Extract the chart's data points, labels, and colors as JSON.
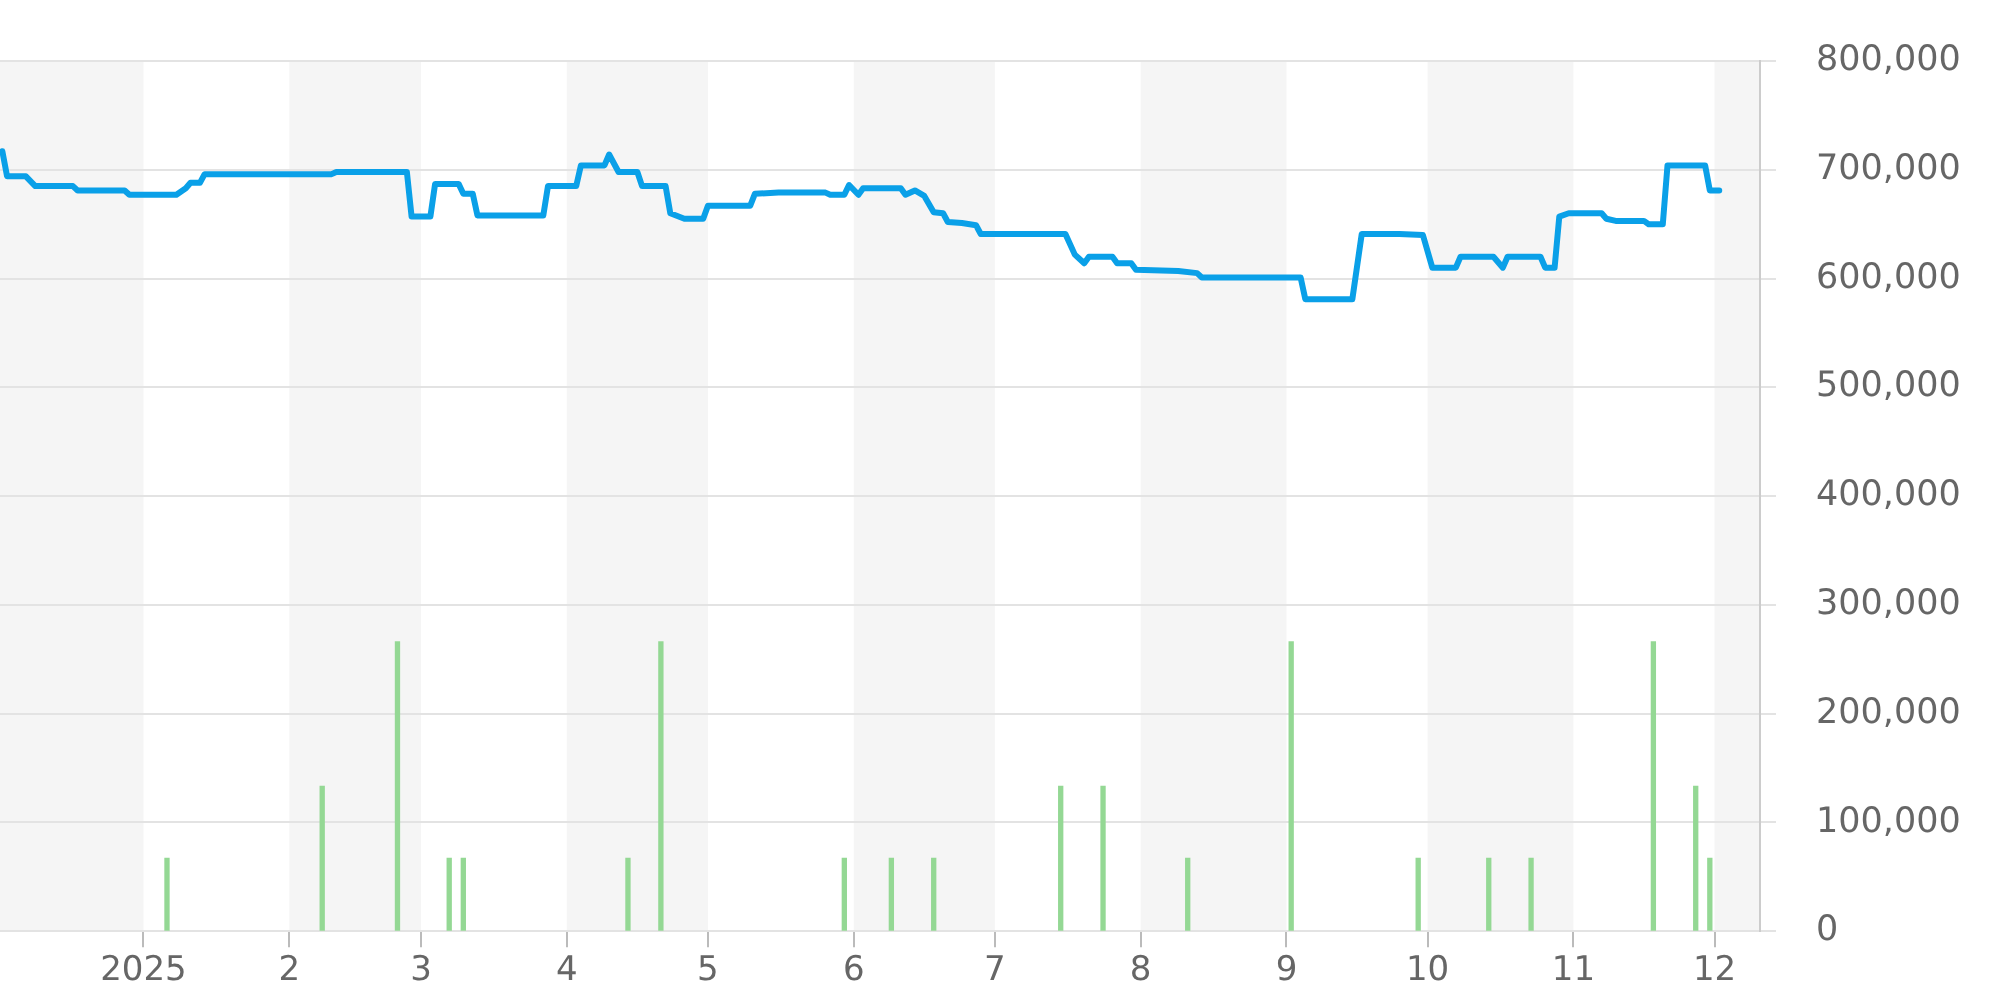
{
  "chart_data": {
    "type": "line",
    "series": [
      {
        "color": "#0aa0e8",
        "x": [
          "2024-12-02",
          "2024-12-03",
          "2024-12-07",
          "2024-12-09",
          "2024-12-17",
          "2024-12-18",
          "2024-12-28",
          "2024-12-29",
          "2025-01-08",
          "2025-01-10",
          "2025-01-11",
          "2025-01-13",
          "2025-01-14",
          "2025-02-10",
          "2025-02-11",
          "2025-02-26",
          "2025-02-27",
          "2025-03-03",
          "2025-03-04",
          "2025-03-09",
          "2025-03-10",
          "2025-03-12",
          "2025-03-13",
          "2025-03-27",
          "2025-03-28",
          "2025-04-03",
          "2025-04-04",
          "2025-04-09",
          "2025-04-10",
          "2025-04-12",
          "2025-04-16",
          "2025-04-17",
          "2025-04-22",
          "2025-04-23",
          "2025-04-26",
          "2025-04-30",
          "2025-05-01",
          "2025-05-10",
          "2025-05-11",
          "2025-05-16",
          "2025-05-26",
          "2025-05-27",
          "2025-05-30",
          "2025-05-31",
          "2025-06-02",
          "2025-06-03",
          "2025-06-11",
          "2025-06-12",
          "2025-06-14",
          "2025-06-16",
          "2025-06-18",
          "2025-06-20",
          "2025-06-21",
          "2025-06-24",
          "2025-06-27",
          "2025-06-28",
          "2025-07-16",
          "2025-07-18",
          "2025-07-20",
          "2025-07-21",
          "2025-07-26",
          "2025-07-27",
          "2025-07-30",
          "2025-07-31",
          "2025-08-09",
          "2025-08-13",
          "2025-08-14",
          "2025-09-04",
          "2025-09-05",
          "2025-09-15",
          "2025-09-17",
          "2025-09-25",
          "2025-09-30",
          "2025-10-02",
          "2025-10-07",
          "2025-10-08",
          "2025-10-15",
          "2025-10-17",
          "2025-10-18",
          "2025-10-25",
          "2025-10-26",
          "2025-10-28",
          "2025-10-29",
          "2025-10-31",
          "2025-11-07",
          "2025-11-08",
          "2025-11-10",
          "2025-11-16",
          "2025-11-17",
          "2025-11-20",
          "2025-11-21",
          "2025-11-29",
          "2025-11-30",
          "2025-12-02"
        ],
        "values": [
          717000,
          694000,
          694000,
          685000,
          685000,
          681000,
          681000,
          677000,
          677000,
          683000,
          688000,
          688000,
          696000,
          696000,
          698000,
          698000,
          657000,
          657000,
          687000,
          687000,
          678000,
          678000,
          658000,
          658000,
          685000,
          685000,
          704000,
          704000,
          714000,
          698000,
          698000,
          685000,
          685000,
          660000,
          655000,
          655000,
          667000,
          667000,
          678000,
          679000,
          679000,
          677000,
          677000,
          686000,
          677000,
          683000,
          683000,
          677000,
          681000,
          676000,
          661000,
          660000,
          652000,
          651000,
          649000,
          641000,
          641000,
          622000,
          614000,
          620000,
          620000,
          614000,
          614000,
          608000,
          607000,
          605000,
          601000,
          601000,
          581000,
          581000,
          641000,
          641000,
          640000,
          610000,
          610000,
          620000,
          620000,
          610000,
          620000,
          620000,
          610000,
          610000,
          657000,
          660000,
          660000,
          655000,
          653000,
          653000,
          650000,
          650000,
          704000,
          704000,
          681000,
          681000
        ]
      },
      {
        "type": "bar",
        "color": "#94d894",
        "x": [
          "2025-01-06",
          "2025-02-08",
          "2025-02-24",
          "2025-03-07",
          "2025-03-10",
          "2025-04-14",
          "2025-04-21",
          "2025-05-30",
          "2025-06-09",
          "2025-06-18",
          "2025-07-15",
          "2025-07-24",
          "2025-08-11",
          "2025-09-02",
          "2025-09-29",
          "2025-10-14",
          "2025-10-23",
          "2025-11-18",
          "2025-11-27",
          "2025-11-30"
        ],
        "values": [
          67000,
          133000,
          266000,
          67000,
          67000,
          67000,
          266000,
          67000,
          67000,
          67000,
          133000,
          133000,
          67000,
          266000,
          67000,
          67000,
          67000,
          266000,
          133000,
          67000
        ]
      }
    ],
    "xlim": [
      "2024-12-01T12:00",
      "2025-12-10T16:00"
    ],
    "xticks": [
      {
        "value": "2025-01-01",
        "label": "2025"
      },
      {
        "value": "2025-02-01",
        "label": "2"
      },
      {
        "value": "2025-03-01",
        "label": "3"
      },
      {
        "value": "2025-04-01",
        "label": "4"
      },
      {
        "value": "2025-05-01",
        "label": "5"
      },
      {
        "value": "2025-06-01",
        "label": "6"
      },
      {
        "value": "2025-07-01",
        "label": "7"
      },
      {
        "value": "2025-08-01",
        "label": "8"
      },
      {
        "value": "2025-09-01",
        "label": "9"
      },
      {
        "value": "2025-10-01",
        "label": "10"
      },
      {
        "value": "2025-11-01",
        "label": "11"
      },
      {
        "value": "2025-12-01",
        "label": "12"
      }
    ],
    "ylim": [
      0,
      800000
    ],
    "yticks": [
      0,
      {
        "value": 100000,
        "label": "100,000"
      },
      {
        "value": 200000,
        "label": "200,000"
      },
      {
        "value": 300000,
        "label": "300,000"
      },
      {
        "value": 400000,
        "label": "400,000"
      },
      {
        "value": 500000,
        "label": "500,000"
      },
      {
        "value": 600000,
        "label": "600,000"
      },
      {
        "value": 700000,
        "label": "700,000"
      },
      {
        "value": 800000,
        "label": "800,000"
      }
    ],
    "grid": "y",
    "bands": [
      {
        "axis": "x",
        "from": "2024-12-01T12:00",
        "to": "2025-01-01",
        "color": "#f5f5f5"
      },
      {
        "axis": "x",
        "from": "2025-02-01",
        "to": "2025-03-01",
        "color": "#f5f5f5"
      },
      {
        "axis": "x",
        "from": "2025-04-01",
        "to": "2025-05-01",
        "color": "#f5f5f5"
      },
      {
        "axis": "x",
        "from": "2025-06-01",
        "to": "2025-07-01",
        "color": "#f5f5f5"
      },
      {
        "axis": "x",
        "from": "2025-08-01",
        "to": "2025-09-01",
        "color": "#f5f5f5"
      },
      {
        "axis": "x",
        "from": "2025-10-01",
        "to": "2025-11-01",
        "color": "#f5f5f5"
      },
      {
        "axis": "x",
        "from": "2025-12-01",
        "to": "2025-12-10T16:00",
        "color": "#f5f5f5"
      }
    ]
  }
}
